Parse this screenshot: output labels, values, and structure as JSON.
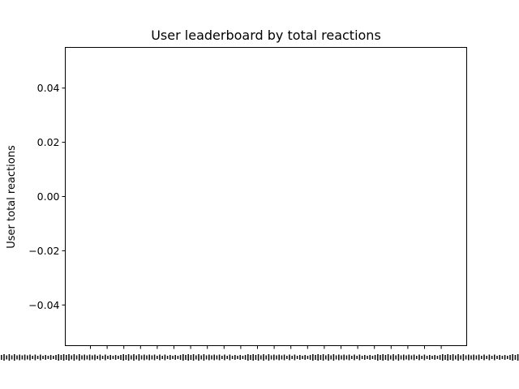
{
  "chart_data": {
    "type": "bar",
    "title": "User leaderboard by total reactions",
    "xlabel": "",
    "ylabel": "User total reactions",
    "ylim": [
      -0.055,
      0.055
    ],
    "yticks": [
      "0.04",
      "0.02",
      "0.00",
      "−0.02",
      "−0.04"
    ],
    "ytick_values": [
      0.04,
      0.02,
      0.0,
      -0.02,
      -0.04
    ],
    "categories": [],
    "values": [],
    "xtick_count": 22,
    "grid": false,
    "legend": "none"
  }
}
